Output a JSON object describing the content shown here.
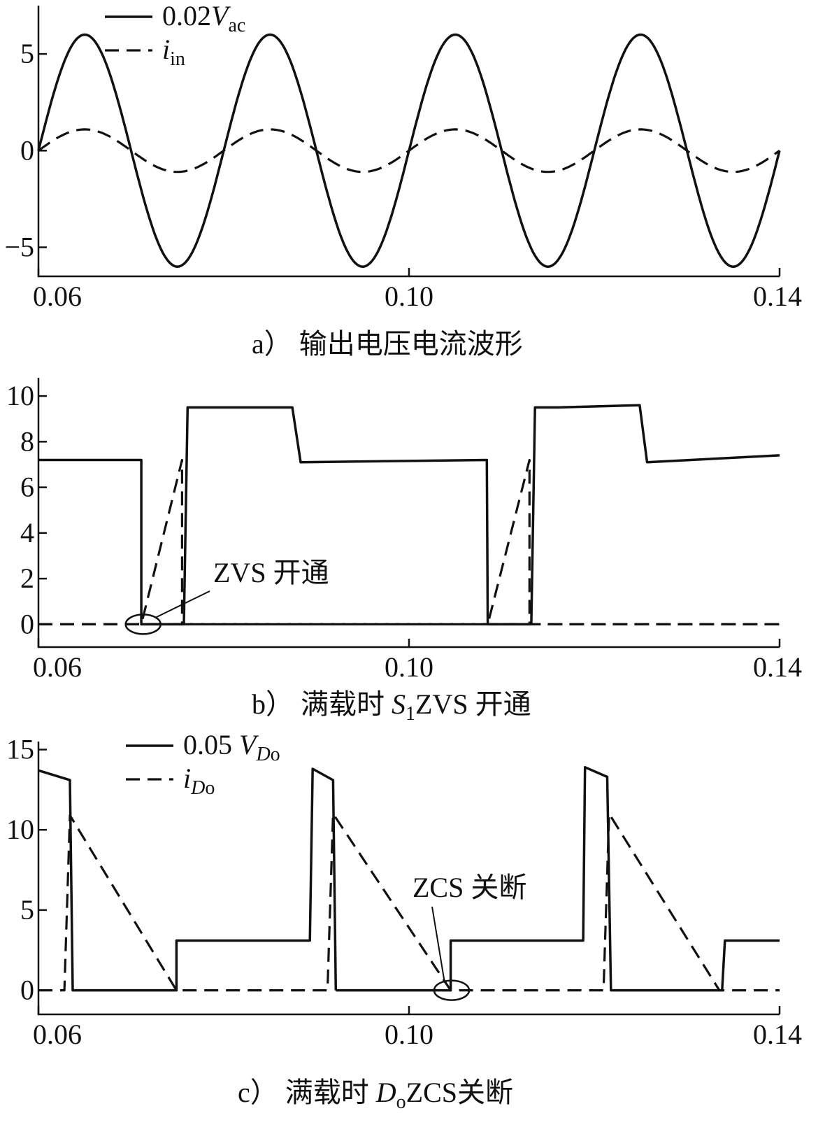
{
  "chart_data": [
    {
      "type": "line",
      "panel": "a",
      "caption_label": "a）",
      "caption_text": "输出电压电流波形",
      "xlim": [
        0.06,
        0.14
      ],
      "ylim": [
        -6.5,
        7.5
      ],
      "x_ticks": [
        {
          "value": 0.06,
          "label": "0.06"
        },
        {
          "value": 0.1,
          "label": "0.10"
        },
        {
          "value": 0.14,
          "label": "0.14"
        }
      ],
      "y_ticks": [
        {
          "value": 5,
          "label": "5"
        },
        {
          "value": 0,
          "label": "0"
        },
        {
          "value": -5,
          "label": "−5"
        }
      ],
      "legend": [
        {
          "style": "solid",
          "base": "0.02",
          "var": "V",
          "sub": "ac"
        },
        {
          "style": "dashed",
          "base": "",
          "var": "i",
          "sub": "in"
        }
      ],
      "series": [
        {
          "style": "solid",
          "x": [
            0.06,
            0.0625,
            0.065,
            0.0675,
            0.07,
            0.0725,
            0.075,
            0.0775,
            0.08,
            0.0825,
            0.085,
            0.0875,
            0.09,
            0.0925,
            0.095,
            0.0975,
            0.1,
            0.1025,
            0.105,
            0.1075,
            0.11,
            0.1125,
            0.115,
            0.1175,
            0.12,
            0.1225,
            0.125,
            0.1275,
            0.13,
            0.1325,
            0.135,
            0.1375,
            0.14
          ],
          "values": [
            0,
            4.24,
            6,
            4.24,
            0,
            -4.24,
            -6,
            -4.24,
            0,
            4.24,
            6,
            4.24,
            0,
            -4.24,
            -6,
            -4.24,
            0,
            4.24,
            6,
            4.24,
            0,
            -4.24,
            -6,
            -4.24,
            0,
            4.24,
            6,
            4.24,
            0,
            -4.24,
            -6,
            -4.24,
            0
          ]
        },
        {
          "style": "dashed",
          "x": [
            0.06,
            0.0625,
            0.065,
            0.0675,
            0.07,
            0.0725,
            0.075,
            0.0775,
            0.08,
            0.0825,
            0.085,
            0.0875,
            0.09,
            0.0925,
            0.095,
            0.0975,
            0.1,
            0.1025,
            0.105,
            0.1075,
            0.11,
            0.1125,
            0.115,
            0.1175,
            0.12,
            0.1225,
            0.125,
            0.1275,
            0.13,
            0.1325,
            0.135,
            0.1375,
            0.14
          ],
          "values": [
            0,
            0.78,
            1.1,
            0.78,
            0,
            -0.78,
            -1.1,
            -0.78,
            0,
            0.78,
            1.1,
            0.78,
            0,
            -0.78,
            -1.1,
            -0.78,
            0,
            0.78,
            1.1,
            0.78,
            0,
            -0.78,
            -1.1,
            -0.78,
            0,
            0.78,
            1.1,
            0.78,
            0,
            -0.78,
            -1.1,
            -0.78,
            0
          ]
        }
      ]
    },
    {
      "type": "line",
      "panel": "b",
      "caption_label": "b）",
      "caption_pre": "满载时 ",
      "caption_var": "S",
      "caption_sub": "1",
      "caption_post": "ZVS 开通",
      "xlim": [
        0.06,
        0.14
      ],
      "ylim": [
        -1,
        10.8
      ],
      "x_ticks": [
        {
          "value": 0.06,
          "label": "0.06"
        },
        {
          "value": 0.1,
          "label": "0.10"
        },
        {
          "value": 0.14,
          "label": "0.14"
        }
      ],
      "y_ticks": [
        {
          "value": 10,
          "label": "10"
        },
        {
          "value": 8,
          "label": "8"
        },
        {
          "value": 6,
          "label": "6"
        },
        {
          "value": 4,
          "label": "4"
        },
        {
          "value": 2,
          "label": "2"
        },
        {
          "value": 0,
          "label": "0"
        }
      ],
      "annotation": {
        "text": "ZVS 开通",
        "x": 0.0713,
        "y": 0
      },
      "series": [
        {
          "style": "solid",
          "x": [
            0.06,
            0.0711,
            0.0711,
            0.0757,
            0.0757,
            0.0761,
            0.0789,
            0.0789,
            0.0874,
            0.0883,
            0.1084,
            0.1085,
            0.1085,
            0.1132,
            0.1132,
            0.1136,
            0.1161,
            0.1161,
            0.1249,
            0.1257,
            0.14
          ],
          "values": [
            7.2,
            7.2,
            0,
            0,
            0,
            9.5,
            9.5,
            9.5,
            9.5,
            7.1,
            7.2,
            0,
            0,
            0,
            0,
            9.5,
            9.5,
            9.5,
            9.6,
            7.1,
            7.4
          ]
        },
        {
          "style": "dashed",
          "x": [
            0.06,
            0.0711,
            0.0755,
            0.0755,
            0.14
          ],
          "values": [
            0,
            0,
            7.2,
            0,
            0
          ]
        },
        {
          "style": "dashed",
          "x": [
            0.06,
            0.1085,
            0.113,
            0.113,
            0.14
          ],
          "values": [
            0,
            0,
            7.2,
            0,
            0
          ]
        }
      ]
    },
    {
      "type": "line",
      "panel": "c",
      "caption_label": "c）",
      "caption_pre": "满载时 ",
      "caption_var": "D",
      "caption_sub": "o",
      "caption_post": "ZCS关断",
      "xlim": [
        0.06,
        0.14
      ],
      "ylim": [
        -1.5,
        15.5
      ],
      "x_ticks": [
        {
          "value": 0.06,
          "label": "0.06"
        },
        {
          "value": 0.1,
          "label": "0.10"
        },
        {
          "value": 0.14,
          "label": "0.14"
        }
      ],
      "y_ticks": [
        {
          "value": 15,
          "label": "15"
        },
        {
          "value": 10,
          "label": "10"
        },
        {
          "value": 5,
          "label": "5"
        },
        {
          "value": 0,
          "label": "0"
        }
      ],
      "legend": [
        {
          "style": "solid",
          "base": "0.05 ",
          "var": "V",
          "sub": "Do"
        },
        {
          "style": "dashed",
          "base": "",
          "var": "i",
          "sub": "Do"
        }
      ],
      "annotation": {
        "text": "ZCS 关断",
        "x": 0.1046,
        "y": 0
      },
      "series": [
        {
          "style": "solid",
          "x": [
            0.06,
            0.0634,
            0.0637,
            0.0637,
            0.0749,
            0.0749,
            0.0893,
            0.0896,
            0.0918,
            0.0921,
            0.0921,
            0.1045,
            0.1045,
            0.1188,
            0.119,
            0.1214,
            0.1218,
            0.1218,
            0.1338,
            0.1341,
            0.14
          ],
          "values": [
            13.7,
            13.1,
            0,
            0,
            0,
            3.1,
            3.1,
            13.8,
            13.1,
            0,
            0,
            0,
            3.1,
            3.1,
            13.9,
            13.3,
            0,
            0,
            0,
            3.1,
            3.1
          ],
          "breaks_after": [
            9
          ]
        },
        {
          "style": "dashed",
          "x": [
            0.06,
            0.0628,
            0.0634,
            0.0749,
            0.0912,
            0.0918,
            0.1045,
            0.121,
            0.1216,
            0.1335,
            0.14
          ],
          "values": [
            0,
            0,
            10.9,
            0,
            0,
            11.0,
            0,
            0,
            11.0,
            0,
            0
          ]
        }
      ]
    }
  ]
}
